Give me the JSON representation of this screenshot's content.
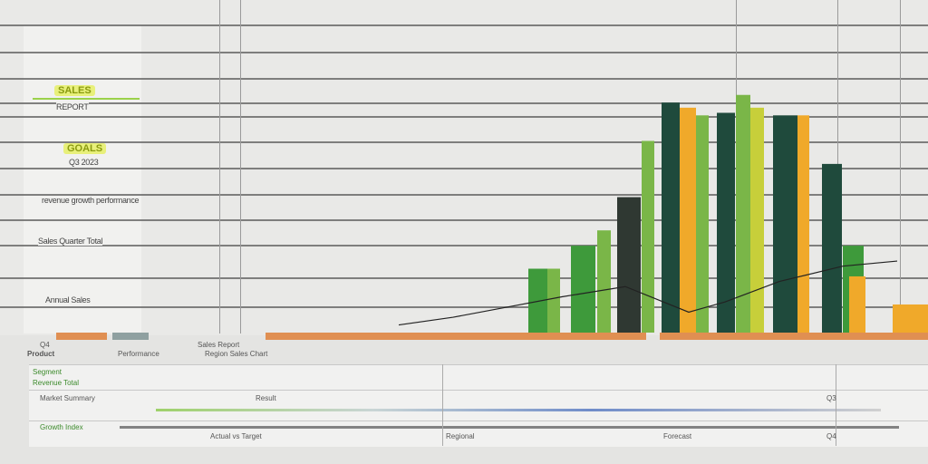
{
  "left_panel": {
    "items": [
      {
        "highlight": "SALES",
        "label": "REPORT"
      },
      {
        "highlight": "GOALS",
        "label": "Q3 2023"
      },
      {
        "label": "revenue growth performance"
      },
      {
        "label": "Sales Quarter Total"
      },
      {
        "label": "Annual Sales"
      }
    ]
  },
  "table": {
    "header": [
      "Q4",
      "Sales Report",
      "Product",
      "Performance",
      "Region Sales Chart"
    ],
    "rows": [
      [
        "Segment",
        "Revenue Total",
        "Market Summary",
        "Result",
        "Q3"
      ],
      [
        "Growth Index",
        "Actual vs Target",
        "Regional",
        "Forecast",
        "Q4"
      ]
    ]
  },
  "chart_data": {
    "type": "bar",
    "title": "",
    "xlabel": "",
    "ylabel": "",
    "ylim": [
      0,
      100
    ],
    "grid": true,
    "colors": {
      "dark": "#1f4a3c",
      "green": "#3e9a3b",
      "light_green": "#7ab648",
      "orange": "#f0a92a",
      "olive": "#c7cf3a",
      "charcoal": "#2f3832"
    },
    "bars": [
      {
        "group": 1,
        "series": "green",
        "value": 25
      },
      {
        "group": 1,
        "series": "light_green",
        "value": 25
      },
      {
        "group": 2,
        "series": "green",
        "value": 34
      },
      {
        "group": 2,
        "series": "light_green",
        "value": 40
      },
      {
        "group": 3,
        "series": "charcoal",
        "value": 53
      },
      {
        "group": 3,
        "series": "light_green",
        "value": 75
      },
      {
        "group": 4,
        "series": "dark",
        "value": 90
      },
      {
        "group": 4,
        "series": "orange",
        "value": 88
      },
      {
        "group": 4,
        "series": "light_green",
        "value": 85
      },
      {
        "group": 5,
        "series": "dark",
        "value": 86
      },
      {
        "group": 5,
        "series": "light_green",
        "value": 93
      },
      {
        "group": 5,
        "series": "olive",
        "value": 88
      },
      {
        "group": 6,
        "series": "dark",
        "value": 85
      },
      {
        "group": 6,
        "series": "orange",
        "value": 85
      },
      {
        "group": 7,
        "series": "dark",
        "value": 66
      },
      {
        "group": 7,
        "series": "green",
        "value": 34
      },
      {
        "group": 7,
        "series": "orange",
        "value": 22
      },
      {
        "group": 8,
        "series": "orange",
        "value": 11
      }
    ],
    "trend_line": [
      3,
      6,
      10,
      14,
      18,
      8,
      12,
      20,
      26,
      28
    ]
  }
}
